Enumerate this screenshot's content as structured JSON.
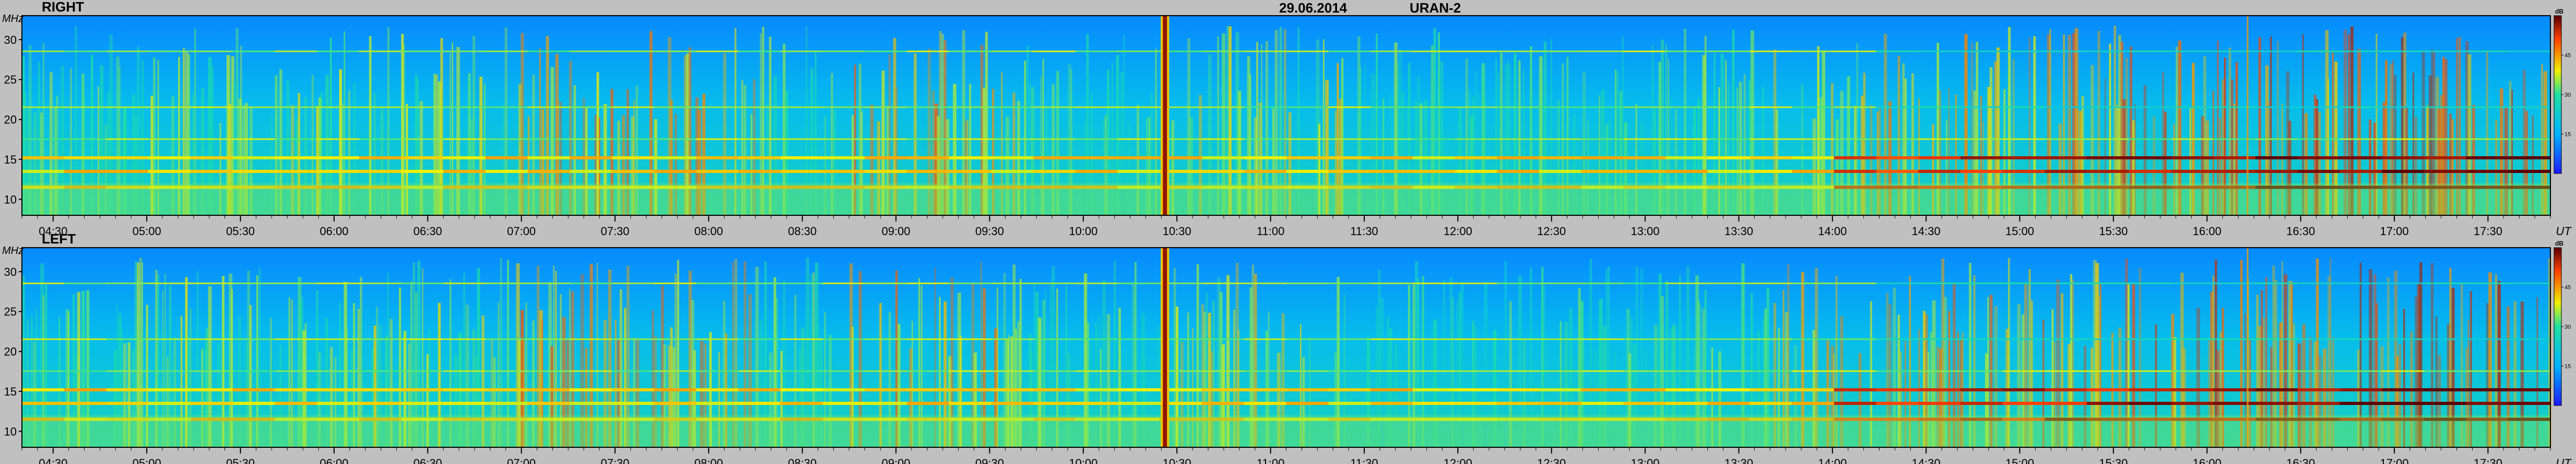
{
  "header": {
    "date": "29.06.2014",
    "station": "URAN-2"
  },
  "chart_data": [
    {
      "type": "heatmap",
      "panel_label": "RIGHT",
      "ylabel": "MHz",
      "xlabel": "UT",
      "x_ticks": [
        "04:30",
        "05:00",
        "05:30",
        "06:00",
        "06:30",
        "07:00",
        "07:30",
        "08:00",
        "08:30",
        "09:00",
        "09:30",
        "10:00",
        "10:30",
        "11:00",
        "11:30",
        "12:00",
        "12:30",
        "13:00",
        "13:30",
        "14:00",
        "14:30",
        "15:00",
        "15:30",
        "16:00",
        "16:30",
        "17:00",
        "17:30"
      ],
      "x_range": [
        "04:20",
        "17:50"
      ],
      "y_ticks": [
        10,
        15,
        20,
        25,
        30
      ],
      "y_range": [
        8,
        33
      ],
      "colorbar": {
        "unit": "dB",
        "ticks": [
          15,
          30,
          45
        ],
        "range": [
          0,
          60
        ]
      },
      "features": {
        "burst_time": "10:26",
        "secondary_burst_time": "16:13",
        "interference_lines_mhz": [
          11.5,
          13.5,
          15.2,
          17.5,
          21.5,
          28.5
        ]
      }
    },
    {
      "type": "heatmap",
      "panel_label": "LEFT",
      "ylabel": "MHz",
      "xlabel": "UT",
      "x_ticks": [
        "04:30",
        "05:00",
        "05:30",
        "06:00",
        "06:30",
        "07:00",
        "07:30",
        "08:00",
        "08:30",
        "09:00",
        "09:30",
        "10:00",
        "10:30",
        "11:00",
        "11:30",
        "12:00",
        "12:30",
        "13:00",
        "13:30",
        "14:00",
        "14:30",
        "15:00",
        "15:30",
        "16:00",
        "16:30",
        "17:00",
        "17:30"
      ],
      "x_range": [
        "04:20",
        "17:50"
      ],
      "y_ticks": [
        10,
        15,
        20,
        25,
        30
      ],
      "y_range": [
        8,
        33
      ],
      "colorbar": {
        "unit": "dB",
        "ticks": [
          15,
          30,
          45
        ],
        "range": [
          0,
          60
        ]
      },
      "features": {
        "burst_time": "10:26",
        "secondary_burst_time": "16:13",
        "interference_lines_mhz": [
          11.5,
          13.5,
          15.2,
          17.5,
          21.5,
          28.5
        ]
      }
    }
  ]
}
